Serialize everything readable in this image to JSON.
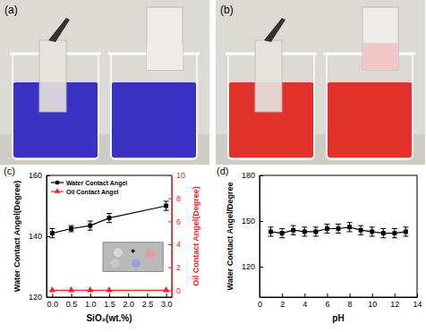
{
  "photos": [
    {
      "label": "(a)"
    },
    {
      "label": "(b)"
    }
  ],
  "chart_data": [
    {
      "type": "line",
      "title": "(c)",
      "x_label": "SiO₂(wt.%)",
      "y_label": "Water Contact Angel(Degree)",
      "y2_label": "Oil Contact Angel(Degree)",
      "x": [
        0,
        0.5,
        1,
        1.5,
        3
      ],
      "series": [
        {
          "name": "Water Contact Angel",
          "color": "#000000",
          "marker": "square",
          "line_style": "solid",
          "values": [
            141,
            142.5,
            143.5,
            146,
            150
          ],
          "errors": [
            1.5,
            1,
            1.5,
            1.5,
            1.5
          ]
        },
        {
          "name": "Oil Contact Angel",
          "color": "#e8262a",
          "marker": "triangle",
          "line_style": "solid",
          "axis": "y2",
          "values": [
            0,
            0,
            0,
            0,
            0
          ]
        }
      ],
      "xlim": [
        -0.15,
        3.15
      ],
      "xticks": [
        {
          "value": 0,
          "label": "0.0"
        },
        {
          "value": 0.5,
          "label": "0.5"
        },
        {
          "value": 1,
          "label": "1.0"
        },
        {
          "value": 1.5,
          "label": "1.5"
        },
        {
          "value": 2,
          "label": "2.0"
        },
        {
          "value": 2.5,
          "label": "2.5"
        },
        {
          "value": 3,
          "label": "3.0"
        }
      ],
      "ylim": [
        120,
        160
      ],
      "yticks": [
        120,
        140,
        160
      ],
      "y2lim": [
        -0.6,
        10
      ],
      "y2ticks": [
        0,
        2,
        4,
        6,
        8,
        10
      ],
      "legend": "upper left"
    },
    {
      "type": "line",
      "title": "(d)",
      "x_label": "pH",
      "y_label": "Water Contact Angel/Degree",
      "x": [
        1,
        2,
        3,
        4,
        5,
        6,
        7,
        8,
        9,
        10,
        11,
        12,
        13
      ],
      "series": [
        {
          "color": "#000000",
          "marker": "square",
          "line_style": "solid",
          "values": [
            143,
            142,
            144,
            143,
            143,
            145,
            145,
            146,
            144,
            143,
            142,
            142,
            143
          ],
          "errors": [
            3,
            3,
            3,
            3,
            3,
            3,
            3,
            3,
            3,
            3,
            3,
            3,
            3
          ]
        }
      ],
      "xlim": [
        0,
        14
      ],
      "xticks": [
        0,
        2,
        4,
        6,
        8,
        10,
        12,
        14
      ],
      "ylim": [
        100,
        180
      ],
      "yticks": [
        120,
        150,
        180
      ]
    }
  ]
}
